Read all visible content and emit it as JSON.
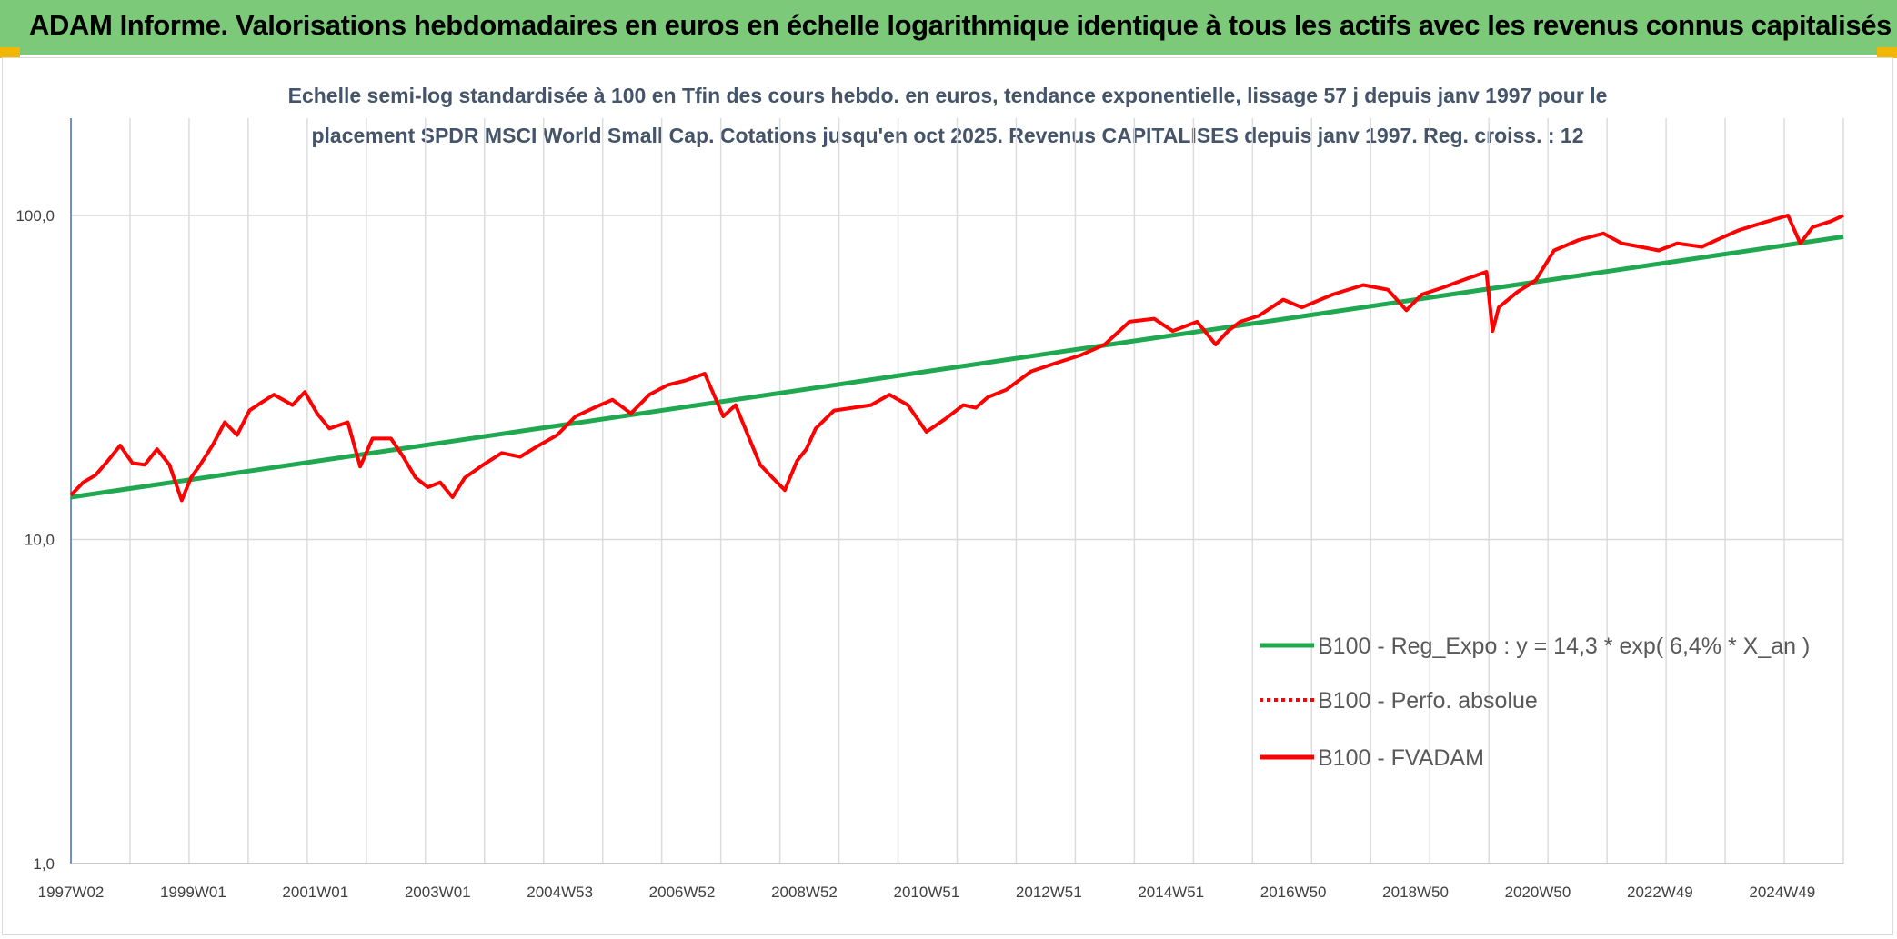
{
  "header": {
    "title": "ADAM Informe. Valorisations hebdomadaires en euros en échelle logarithmique identique à tous les actifs avec les revenus connus capitalisés",
    "background": "#7dc97a",
    "corner_color": "#f2b705"
  },
  "chart_data": {
    "type": "line",
    "title_line1": "Echelle semi-log standardisée à 100 en Tfin des cours hebdo. en euros, tendance exponentielle, lissage 57 j depuis janv 1997 pour le",
    "title_line2": "placement SPDR MSCI World Small Cap. Cotations jusqu'en oct 2025. Revenus CAPITALISES depuis janv 1997. Reg. croiss. : 12",
    "y_scale": "log",
    "ylim": [
      1,
      100
    ],
    "y_ticks": [
      "1,0",
      "10,0",
      "100,0"
    ],
    "x_tick_labels": [
      "1997W02",
      "1999W01",
      "2001W01",
      "2003W01",
      "2004W53",
      "2006W52",
      "2008W52",
      "2010W51",
      "2012W51",
      "2014W51",
      "2016W50",
      "2018W50",
      "2020W50",
      "2022W49",
      "2024W49"
    ],
    "x_range": [
      1997.0,
      2025.8
    ],
    "grid": "vertical and horizontal",
    "legend_position": "bottom-right",
    "series": [
      {
        "name": "B100 - Reg_Expo : y = 14,3 * exp( 6,4% *  X_an )",
        "color": "#1fa84f",
        "style": "solid",
        "x": [
          1997.0,
          2025.8
        ],
        "y": [
          13.5,
          86.0
        ]
      },
      {
        "name": "B100 - Perfo. absolue",
        "color": "#ff0000",
        "style": "dotted",
        "x": [],
        "y": []
      },
      {
        "name": "B100 - FVADAM",
        "color": "#ff0000",
        "style": "solid",
        "x": [
          1997.0,
          1997.2,
          1997.4,
          1997.6,
          1997.8,
          1998.0,
          1998.2,
          1998.4,
          1998.6,
          1998.8,
          1998.95,
          1999.1,
          1999.3,
          1999.5,
          1999.7,
          1999.9,
          2000.1,
          2000.3,
          2000.6,
          2000.8,
          2001.0,
          2001.2,
          2001.5,
          2001.7,
          2001.9,
          2002.2,
          2002.4,
          2002.6,
          2002.8,
          2003.0,
          2003.2,
          2003.4,
          2003.7,
          2004.0,
          2004.3,
          2004.6,
          2004.9,
          2005.2,
          2005.5,
          2005.8,
          2006.1,
          2006.4,
          2006.7,
          2007.0,
          2007.3,
          2007.6,
          2007.8,
          2008.0,
          2008.2,
          2008.4,
          2008.6,
          2008.8,
          2008.95,
          2009.1,
          2009.4,
          2009.7,
          2010.0,
          2010.3,
          2010.6,
          2010.9,
          2011.2,
          2011.5,
          2011.7,
          2011.9,
          2012.2,
          2012.6,
          2013.0,
          2013.4,
          2013.8,
          2014.2,
          2014.6,
          2014.9,
          2015.3,
          2015.6,
          2015.8,
          2016.0,
          2016.3,
          2016.7,
          2017.0,
          2017.5,
          2018.0,
          2018.4,
          2018.7,
          2018.95,
          2019.3,
          2019.7,
          2020.0,
          2020.1,
          2020.2,
          2020.5,
          2020.8,
          2021.1,
          2021.5,
          2021.9,
          2022.2,
          2022.5,
          2022.8,
          2023.1,
          2023.5,
          2023.8,
          2024.1,
          2024.5,
          2024.9,
          2025.1,
          2025.3,
          2025.6,
          2025.8
        ],
        "y": [
          13.7,
          15.0,
          15.8,
          17.5,
          19.5,
          17.2,
          17.0,
          19.0,
          17.0,
          13.2,
          15.5,
          17.0,
          19.5,
          23.0,
          21.0,
          25.0,
          26.5,
          28.0,
          26.0,
          28.5,
          24.5,
          22.0,
          23.0,
          16.8,
          20.5,
          20.5,
          18.0,
          15.5,
          14.5,
          15.0,
          13.5,
          15.5,
          17.0,
          18.5,
          18.0,
          19.5,
          21.0,
          24.0,
          25.5,
          27.0,
          24.5,
          28.0,
          30.0,
          31.0,
          32.5,
          24.0,
          26.0,
          21.0,
          17.0,
          15.5,
          14.2,
          17.5,
          19.0,
          22.0,
          25.0,
          25.5,
          26.0,
          28.0,
          26.0,
          21.5,
          23.5,
          26.0,
          25.5,
          27.5,
          29.0,
          33.0,
          35.0,
          37.0,
          40.0,
          47.0,
          48.0,
          44.0,
          47.0,
          40.0,
          44.0,
          47.0,
          49.0,
          55.0,
          52.0,
          57.0,
          61.0,
          59.0,
          51.0,
          57.0,
          60.0,
          64.0,
          67.0,
          44.0,
          52.0,
          58.0,
          63.0,
          78.0,
          84.0,
          88.0,
          82.0,
          80.0,
          78.0,
          82.0,
          80.0,
          85.0,
          90.0,
          95.0,
          100.0,
          82.0,
          92.0,
          96.0,
          100.0
        ]
      }
    ]
  }
}
